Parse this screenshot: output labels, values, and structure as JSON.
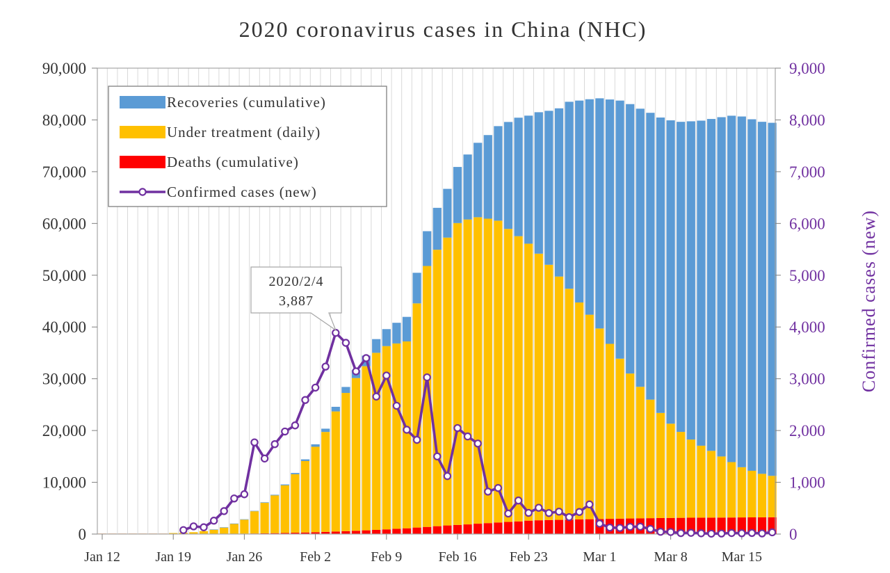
{
  "chart_data": {
    "type": "bar",
    "title": "2020 coronavirus cases in China (NHC)",
    "ylabel_right": "Confirmed cases (new)",
    "ylim_left": [
      0,
      90000
    ],
    "ylim_right": [
      0,
      9000
    ],
    "yticks_left": [
      "0",
      "10,000",
      "20,000",
      "30,000",
      "40,000",
      "50,000",
      "60,000",
      "70,000",
      "80,000",
      "90,000"
    ],
    "yticks_right": [
      "0",
      "1,000",
      "2,000",
      "3,000",
      "4,000",
      "5,000",
      "6,000",
      "7,000",
      "8,000",
      "9,000"
    ],
    "xticks": [
      "Jan 12",
      "Jan 19",
      "Jan 26",
      "Feb 2",
      "Feb 9",
      "Feb 16",
      "Feb 23",
      "Mar 1",
      "Mar 8",
      "Mar 15"
    ],
    "grid": "vertical",
    "legend_position": "top-left",
    "stacked": true,
    "start_date": "2020-01-12",
    "x": [
      "2020-01-12",
      "2020-01-13",
      "2020-01-14",
      "2020-01-15",
      "2020-01-16",
      "2020-01-17",
      "2020-01-18",
      "2020-01-19",
      "2020-01-20",
      "2020-01-21",
      "2020-01-22",
      "2020-01-23",
      "2020-01-24",
      "2020-01-25",
      "2020-01-26",
      "2020-01-27",
      "2020-01-28",
      "2020-01-29",
      "2020-01-30",
      "2020-01-31",
      "2020-02-01",
      "2020-02-02",
      "2020-02-03",
      "2020-02-04",
      "2020-02-05",
      "2020-02-06",
      "2020-02-07",
      "2020-02-08",
      "2020-02-09",
      "2020-02-10",
      "2020-02-11",
      "2020-02-12",
      "2020-02-13",
      "2020-02-14",
      "2020-02-15",
      "2020-02-16",
      "2020-02-17",
      "2020-02-18",
      "2020-02-19",
      "2020-02-20",
      "2020-02-21",
      "2020-02-22",
      "2020-02-23",
      "2020-02-24",
      "2020-02-25",
      "2020-02-26",
      "2020-02-27",
      "2020-02-28",
      "2020-02-29",
      "2020-03-01",
      "2020-03-02",
      "2020-03-03",
      "2020-03-04",
      "2020-03-05",
      "2020-03-06",
      "2020-03-07",
      "2020-03-08",
      "2020-03-09",
      "2020-03-10",
      "2020-03-11",
      "2020-03-12",
      "2020-03-13",
      "2020-03-14",
      "2020-03-15",
      "2020-03-16",
      "2020-03-17",
      "2020-03-18"
    ],
    "series": [
      {
        "name": "Deaths (cumulative)",
        "color": "#ff0000",
        "axis": "left",
        "kind": "bar",
        "values": [
          1,
          1,
          1,
          2,
          2,
          2,
          2,
          2,
          3,
          6,
          17,
          25,
          41,
          56,
          80,
          106,
          132,
          170,
          213,
          259,
          304,
          361,
          425,
          490,
          563,
          636,
          722,
          811,
          908,
          1016,
          1113,
          1259,
          1380,
          1523,
          1665,
          1770,
          1868,
          2004,
          2118,
          2236,
          2345,
          2442,
          2592,
          2663,
          2715,
          2744,
          2788,
          2835,
          2870,
          2912,
          2943,
          2981,
          3012,
          3042,
          3070,
          3097,
          3119,
          3136,
          3158,
          3169,
          3176,
          3189,
          3199,
          3213,
          3226,
          3237,
          3245
        ]
      },
      {
        "name": "Under treatment (daily)",
        "color": "#ffc000",
        "axis": "left",
        "kind": "bar",
        "values": [
          40,
          40,
          40,
          40,
          40,
          40,
          60,
          190,
          250,
          350,
          550,
          800,
          1200,
          1900,
          2700,
          4300,
          5900,
          7300,
          9200,
          11300,
          13800,
          16500,
          19300,
          23200,
          26700,
          29500,
          31700,
          34200,
          35400,
          35800,
          36100,
          43300,
          50400,
          53400,
          55600,
          58300,
          58900,
          59200,
          58800,
          58300,
          56600,
          55100,
          53500,
          51500,
          49300,
          47000,
          44600,
          41900,
          39500,
          36800,
          33800,
          30900,
          28000,
          25400,
          22900,
          20300,
          18200,
          16600,
          15100,
          13900,
          12900,
          11800,
          10700,
          9700,
          9000,
          8400,
          8000
        ]
      },
      {
        "name": "Recoveries (cumulative)",
        "color": "#5b9bd5",
        "axis": "left",
        "kind": "bar",
        "values": [
          0,
          0,
          0,
          0,
          0,
          0,
          0,
          0,
          0,
          0,
          0,
          34,
          38,
          49,
          51,
          60,
          103,
          124,
          171,
          243,
          328,
          475,
          632,
          892,
          1153,
          1540,
          2050,
          2649,
          3281,
          3996,
          4740,
          5911,
          6723,
          8096,
          9419,
          10844,
          12552,
          14376,
          16155,
          18264,
          20659,
          22888,
          24734,
          27323,
          29745,
          32495,
          36117,
          39002,
          41625,
          44462,
          47204,
          49856,
          52045,
          53726,
          55404,
          57065,
          58600,
          59897,
          61475,
          62793,
          64111,
          65541,
          66911,
          67749,
          67900,
          68000,
          68200
        ]
      },
      {
        "name": "Confirmed cases (new)",
        "color": "#7030a0",
        "axis": "right",
        "kind": "line",
        "values": [
          null,
          null,
          null,
          null,
          null,
          null,
          null,
          null,
          77,
          149,
          131,
          259,
          444,
          688,
          769,
          1771,
          1459,
          1737,
          1981,
          2099,
          2590,
          2829,
          3235,
          3887,
          3694,
          3143,
          3399,
          2656,
          3062,
          2478,
          2015,
          1820,
          3027,
          1500,
          1120,
          2048,
          1886,
          1749,
          820,
          890,
          397,
          648,
          409,
          508,
          406,
          433,
          327,
          427,
          573,
          202,
          125,
          119,
          139,
          143,
          99,
          44,
          40,
          19,
          24,
          15,
          8,
          11,
          20,
          16,
          21,
          13,
          34
        ]
      }
    ],
    "annotation": {
      "date": "2020/2/4",
      "value": "3,887"
    }
  }
}
